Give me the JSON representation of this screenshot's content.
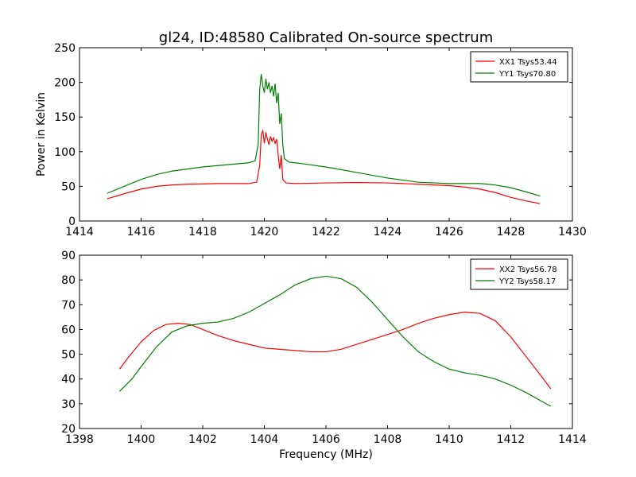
{
  "chart_data": [
    {
      "type": "line",
      "title": "gl24, ID:48580 Calibrated On-source spectrum",
      "xlabel": "",
      "ylabel": "Power in Kelvin",
      "xlim": [
        1414,
        1430
      ],
      "ylim": [
        0,
        250
      ],
      "xticks": [
        "1414",
        "1416",
        "1418",
        "1420",
        "1422",
        "1424",
        "1426",
        "1428",
        "1430"
      ],
      "yticks": [
        "0",
        "50",
        "100",
        "150",
        "200",
        "250"
      ],
      "legend_position": "top-right",
      "grid": false,
      "series": [
        {
          "name": "XX1 Tsys53.44",
          "color": "#ff0000",
          "x": [
            1414.9,
            1415.5,
            1416.0,
            1416.5,
            1417.0,
            1417.5,
            1418.0,
            1418.5,
            1419.0,
            1419.5,
            1419.75,
            1419.85,
            1419.9,
            1419.95,
            1420.0,
            1420.05,
            1420.1,
            1420.15,
            1420.2,
            1420.25,
            1420.3,
            1420.35,
            1420.4,
            1420.45,
            1420.5,
            1420.55,
            1420.6,
            1420.7,
            1421.0,
            1422.0,
            1423.0,
            1424.0,
            1425.0,
            1426.0,
            1426.5,
            1427.0,
            1427.5,
            1428.0,
            1428.5,
            1428.95
          ],
          "y": [
            32,
            40,
            46,
            50,
            52,
            53,
            53.5,
            54,
            54,
            54,
            56,
            80,
            125,
            130,
            112,
            128,
            118,
            110,
            122,
            115,
            120,
            112,
            118,
            95,
            75,
            95,
            60,
            55,
            54,
            55,
            55.5,
            55,
            53,
            51,
            49,
            46,
            41,
            34,
            29,
            25
          ]
        },
        {
          "name": "YY1 Tsys70.80",
          "color": "#008000",
          "x": [
            1414.9,
            1415.5,
            1416.0,
            1416.5,
            1417.0,
            1417.5,
            1418.0,
            1418.5,
            1419.0,
            1419.5,
            1419.7,
            1419.8,
            1419.85,
            1419.9,
            1419.95,
            1420.0,
            1420.05,
            1420.1,
            1420.15,
            1420.2,
            1420.25,
            1420.3,
            1420.35,
            1420.4,
            1420.45,
            1420.5,
            1420.55,
            1420.6,
            1420.65,
            1420.8,
            1421.0,
            1422.0,
            1423.0,
            1424.0,
            1425.0,
            1426.0,
            1427.0,
            1427.5,
            1428.0,
            1428.5,
            1428.95
          ],
          "y": [
            40,
            51,
            60,
            67,
            72,
            75,
            78,
            80,
            82,
            84,
            87,
            110,
            190,
            212,
            195,
            185,
            205,
            190,
            200,
            185,
            195,
            180,
            198,
            170,
            185,
            140,
            155,
            110,
            90,
            85,
            84,
            78,
            70,
            62,
            56,
            54,
            54,
            52,
            48,
            42,
            36
          ]
        }
      ]
    },
    {
      "type": "line",
      "title": "",
      "xlabel": "Frequency (MHz)",
      "ylabel": "",
      "xlim": [
        1398,
        1414
      ],
      "ylim": [
        20,
        90
      ],
      "xticks": [
        "1398",
        "1400",
        "1402",
        "1404",
        "1406",
        "1408",
        "1410",
        "1412",
        "1414"
      ],
      "yticks": [
        "20",
        "30",
        "40",
        "50",
        "60",
        "70",
        "80",
        "90"
      ],
      "legend_position": "top-right",
      "grid": false,
      "series": [
        {
          "name": "XX2 Tsys56.78",
          "color": "#ff0000",
          "x": [
            1399.3,
            1399.6,
            1400.0,
            1400.4,
            1400.8,
            1401.2,
            1401.6,
            1402.0,
            1402.5,
            1403.0,
            1403.5,
            1404.0,
            1404.5,
            1405.0,
            1405.5,
            1406.0,
            1406.5,
            1407.0,
            1407.5,
            1408.0,
            1408.5,
            1409.0,
            1409.5,
            1410.0,
            1410.5,
            1411.0,
            1411.5,
            1412.0,
            1412.5,
            1413.0,
            1413.3
          ],
          "y": [
            44,
            49,
            55,
            59.5,
            62,
            62.5,
            62,
            60,
            57.5,
            55.5,
            54,
            52.5,
            52,
            51.5,
            51,
            51,
            52,
            54,
            56,
            58,
            60,
            62.5,
            64.5,
            66,
            67,
            66.5,
            63.5,
            57,
            49,
            41,
            36
          ]
        },
        {
          "name": "YY2 Tsys58.17",
          "color": "#008000",
          "x": [
            1399.3,
            1399.7,
            1400.0,
            1400.5,
            1401.0,
            1401.5,
            1402.0,
            1402.5,
            1403.0,
            1403.5,
            1404.0,
            1404.5,
            1405.0,
            1405.5,
            1406.0,
            1406.5,
            1407.0,
            1407.5,
            1408.0,
            1408.5,
            1409.0,
            1409.5,
            1410.0,
            1410.5,
            1411.0,
            1411.5,
            1412.0,
            1412.5,
            1413.0,
            1413.3
          ],
          "y": [
            35,
            40,
            45,
            53,
            59,
            61.5,
            62.5,
            63,
            64.5,
            67,
            70.5,
            74,
            78,
            80.5,
            81.5,
            80.5,
            77,
            71,
            64,
            57,
            51,
            47,
            44,
            42.5,
            41.5,
            40,
            37.5,
            34.5,
            31,
            29
          ]
        }
      ]
    }
  ]
}
